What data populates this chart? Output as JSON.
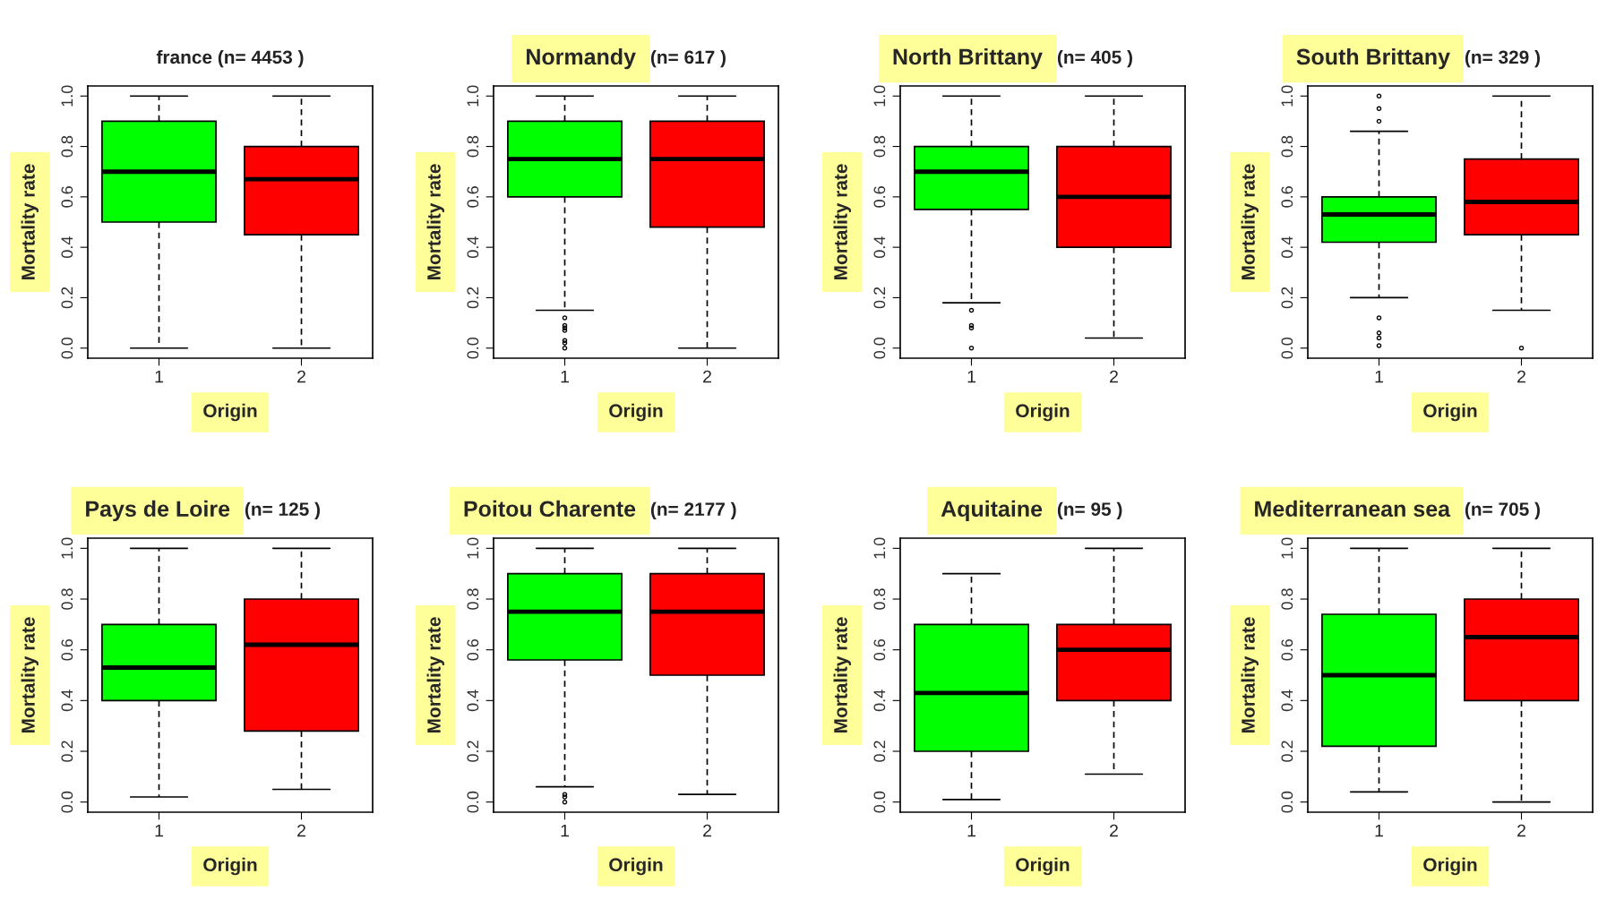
{
  "chart_data": [
    {
      "type": "box",
      "title": "france (n= 4453 )",
      "ylabel": "Mortality rate",
      "xlabel": "Origin",
      "categories": [
        "1",
        "2"
      ],
      "colors": [
        "#00ff00",
        "#ff0000"
      ],
      "marker": "circle",
      "grid": false,
      "ylim": [
        -0.04,
        1.04
      ],
      "yticks": [
        {
          "value": 0,
          "label": "0.0"
        },
        {
          "value": 0.2,
          "label": "0.2"
        },
        {
          "value": 0.4,
          "label": "0.4"
        },
        {
          "value": 0.6,
          "label": "0.6"
        },
        {
          "value": 0.8,
          "label": "0.8"
        },
        {
          "value": 1,
          "label": "1.0"
        }
      ],
      "boxes": [
        {
          "low": 0,
          "q1": 0.5,
          "median": 0.7,
          "q3": 0.9,
          "high": 1
        },
        {
          "low": 0,
          "q1": 0.45,
          "median": 0.67,
          "q3": 0.8,
          "high": 1
        }
      ]
    },
    {
      "type": "box",
      "title": "Normandy",
      "subtitle": "(n= 617 )",
      "ylabel": "Mortality rate",
      "xlabel": "Origin",
      "categories": [
        "1",
        "2"
      ],
      "colors": [
        "#00ff00",
        "#ff0000"
      ],
      "marker": "circle",
      "grid": false,
      "ylim": [
        -0.04,
        1.04
      ],
      "yticks": [
        {
          "value": 0,
          "label": "0.0"
        },
        {
          "value": 0.2,
          "label": "0.2"
        },
        {
          "value": 0.4,
          "label": "0.4"
        },
        {
          "value": 0.6,
          "label": "0.6"
        },
        {
          "value": 0.8,
          "label": "0.8"
        },
        {
          "value": 1,
          "label": "1.0"
        }
      ],
      "boxes": [
        {
          "low": 0.15,
          "q1": 0.6,
          "median": 0.75,
          "q3": 0.9,
          "high": 1,
          "outliers": [
            0.12,
            0.09,
            0.08,
            0.07,
            0.03,
            0.02,
            0
          ]
        },
        {
          "low": 0,
          "q1": 0.48,
          "median": 0.75,
          "q3": 0.9,
          "high": 1
        }
      ]
    },
    {
      "type": "box",
      "title": "North Brittany",
      "subtitle": "(n= 405 )",
      "ylabel": "Mortality rate",
      "xlabel": "Origin",
      "categories": [
        "1",
        "2"
      ],
      "colors": [
        "#00ff00",
        "#ff0000"
      ],
      "marker": "circle",
      "grid": false,
      "ylim": [
        -0.04,
        1.04
      ],
      "yticks": [
        {
          "value": 0,
          "label": "0.0"
        },
        {
          "value": 0.2,
          "label": "0.2"
        },
        {
          "value": 0.4,
          "label": "0.4"
        },
        {
          "value": 0.6,
          "label": "0.6"
        },
        {
          "value": 0.8,
          "label": "0.8"
        },
        {
          "value": 1,
          "label": "1.0"
        }
      ],
      "boxes": [
        {
          "low": 0.18,
          "q1": 0.55,
          "median": 0.7,
          "q3": 0.8,
          "high": 1,
          "outliers": [
            0.15,
            0.09,
            0.08,
            0
          ]
        },
        {
          "low": 0.04,
          "q1": 0.4,
          "median": 0.6,
          "q3": 0.8,
          "high": 1
        }
      ]
    },
    {
      "type": "box",
      "title": "South Brittany",
      "subtitle": "(n= 329 )",
      "ylabel": "Mortality rate",
      "xlabel": "Origin",
      "categories": [
        "1",
        "2"
      ],
      "colors": [
        "#00ff00",
        "#ff0000"
      ],
      "marker": "circle",
      "grid": false,
      "ylim": [
        -0.04,
        1.04
      ],
      "yticks": [
        {
          "value": 0,
          "label": "0.0"
        },
        {
          "value": 0.2,
          "label": "0.2"
        },
        {
          "value": 0.4,
          "label": "0.4"
        },
        {
          "value": 0.6,
          "label": "0.6"
        },
        {
          "value": 0.8,
          "label": "0.8"
        },
        {
          "value": 1,
          "label": "1.0"
        }
      ],
      "boxes": [
        {
          "low": 0.2,
          "q1": 0.42,
          "median": 0.53,
          "q3": 0.6,
          "high": 0.86,
          "outliers": [
            1,
            0.95,
            0.9,
            0.12,
            0.06,
            0.04,
            0.01
          ]
        },
        {
          "low": 0.15,
          "q1": 0.45,
          "median": 0.58,
          "q3": 0.75,
          "high": 1,
          "outliers": [
            0
          ]
        }
      ]
    },
    {
      "type": "box",
      "title": "Pays de Loire",
      "subtitle": "(n= 125 )",
      "ylabel": "Mortality rate",
      "xlabel": "Origin",
      "categories": [
        "1",
        "2"
      ],
      "colors": [
        "#00ff00",
        "#ff0000"
      ],
      "marker": "circle",
      "grid": false,
      "ylim": [
        -0.04,
        1.04
      ],
      "yticks": [
        {
          "value": 0,
          "label": "0.0"
        },
        {
          "value": 0.2,
          "label": "0.2"
        },
        {
          "value": 0.4,
          "label": "0.4"
        },
        {
          "value": 0.6,
          "label": "0.6"
        },
        {
          "value": 0.8,
          "label": "0.8"
        },
        {
          "value": 1,
          "label": "1.0"
        }
      ],
      "boxes": [
        {
          "low": 0.02,
          "q1": 0.4,
          "median": 0.53,
          "q3": 0.7,
          "high": 1
        },
        {
          "low": 0.05,
          "q1": 0.28,
          "median": 0.62,
          "q3": 0.8,
          "high": 1
        }
      ]
    },
    {
      "type": "box",
      "title": "Poitou Charente",
      "subtitle": "(n= 2177 )",
      "ylabel": "Mortality rate",
      "xlabel": "Origin",
      "categories": [
        "1",
        "2"
      ],
      "colors": [
        "#00ff00",
        "#ff0000"
      ],
      "marker": "circle",
      "grid": false,
      "ylim": [
        -0.04,
        1.04
      ],
      "yticks": [
        {
          "value": 0,
          "label": "0.0"
        },
        {
          "value": 0.2,
          "label": "0.2"
        },
        {
          "value": 0.4,
          "label": "0.4"
        },
        {
          "value": 0.6,
          "label": "0.6"
        },
        {
          "value": 0.8,
          "label": "0.8"
        },
        {
          "value": 1,
          "label": "1.0"
        }
      ],
      "boxes": [
        {
          "low": 0.06,
          "q1": 0.56,
          "median": 0.75,
          "q3": 0.9,
          "high": 1,
          "outliers": [
            0.03,
            0.02,
            0
          ]
        },
        {
          "low": 0.03,
          "q1": 0.5,
          "median": 0.75,
          "q3": 0.9,
          "high": 1
        }
      ]
    },
    {
      "type": "box",
      "title": "Aquitaine",
      "subtitle": "(n= 95 )",
      "ylabel": "Mortality rate",
      "xlabel": "Origin",
      "categories": [
        "1",
        "2"
      ],
      "colors": [
        "#00ff00",
        "#ff0000"
      ],
      "marker": "circle",
      "grid": false,
      "ylim": [
        -0.04,
        1.04
      ],
      "yticks": [
        {
          "value": 0,
          "label": "0.0"
        },
        {
          "value": 0.2,
          "label": "0.2"
        },
        {
          "value": 0.4,
          "label": "0.4"
        },
        {
          "value": 0.6,
          "label": "0.6"
        },
        {
          "value": 0.8,
          "label": "0.8"
        },
        {
          "value": 1,
          "label": "1.0"
        }
      ],
      "boxes": [
        {
          "low": 0.01,
          "q1": 0.2,
          "median": 0.43,
          "q3": 0.7,
          "high": 0.9
        },
        {
          "low": 0.11,
          "q1": 0.4,
          "median": 0.6,
          "q3": 0.7,
          "high": 1
        }
      ]
    },
    {
      "type": "box",
      "title": "Mediterranean sea",
      "subtitle": "(n= 705 )",
      "ylabel": "Mortality rate",
      "xlabel": "Origin",
      "categories": [
        "1",
        "2"
      ],
      "colors": [
        "#00ff00",
        "#ff0000"
      ],
      "marker": "circle",
      "grid": false,
      "ylim": [
        -0.04,
        1.04
      ],
      "yticks": [
        {
          "value": 0,
          "label": "0.0"
        },
        {
          "value": 0.2,
          "label": "0.2"
        },
        {
          "value": 0.4,
          "label": "0.4"
        },
        {
          "value": 0.6,
          "label": "0.6"
        },
        {
          "value": 0.8,
          "label": "0.8"
        },
        {
          "value": 1,
          "label": "1.0"
        }
      ],
      "boxes": [
        {
          "low": 0.04,
          "q1": 0.22,
          "median": 0.5,
          "q3": 0.74,
          "high": 1
        },
        {
          "low": 0,
          "q1": 0.4,
          "median": 0.65,
          "q3": 0.8,
          "high": 1
        }
      ]
    }
  ]
}
